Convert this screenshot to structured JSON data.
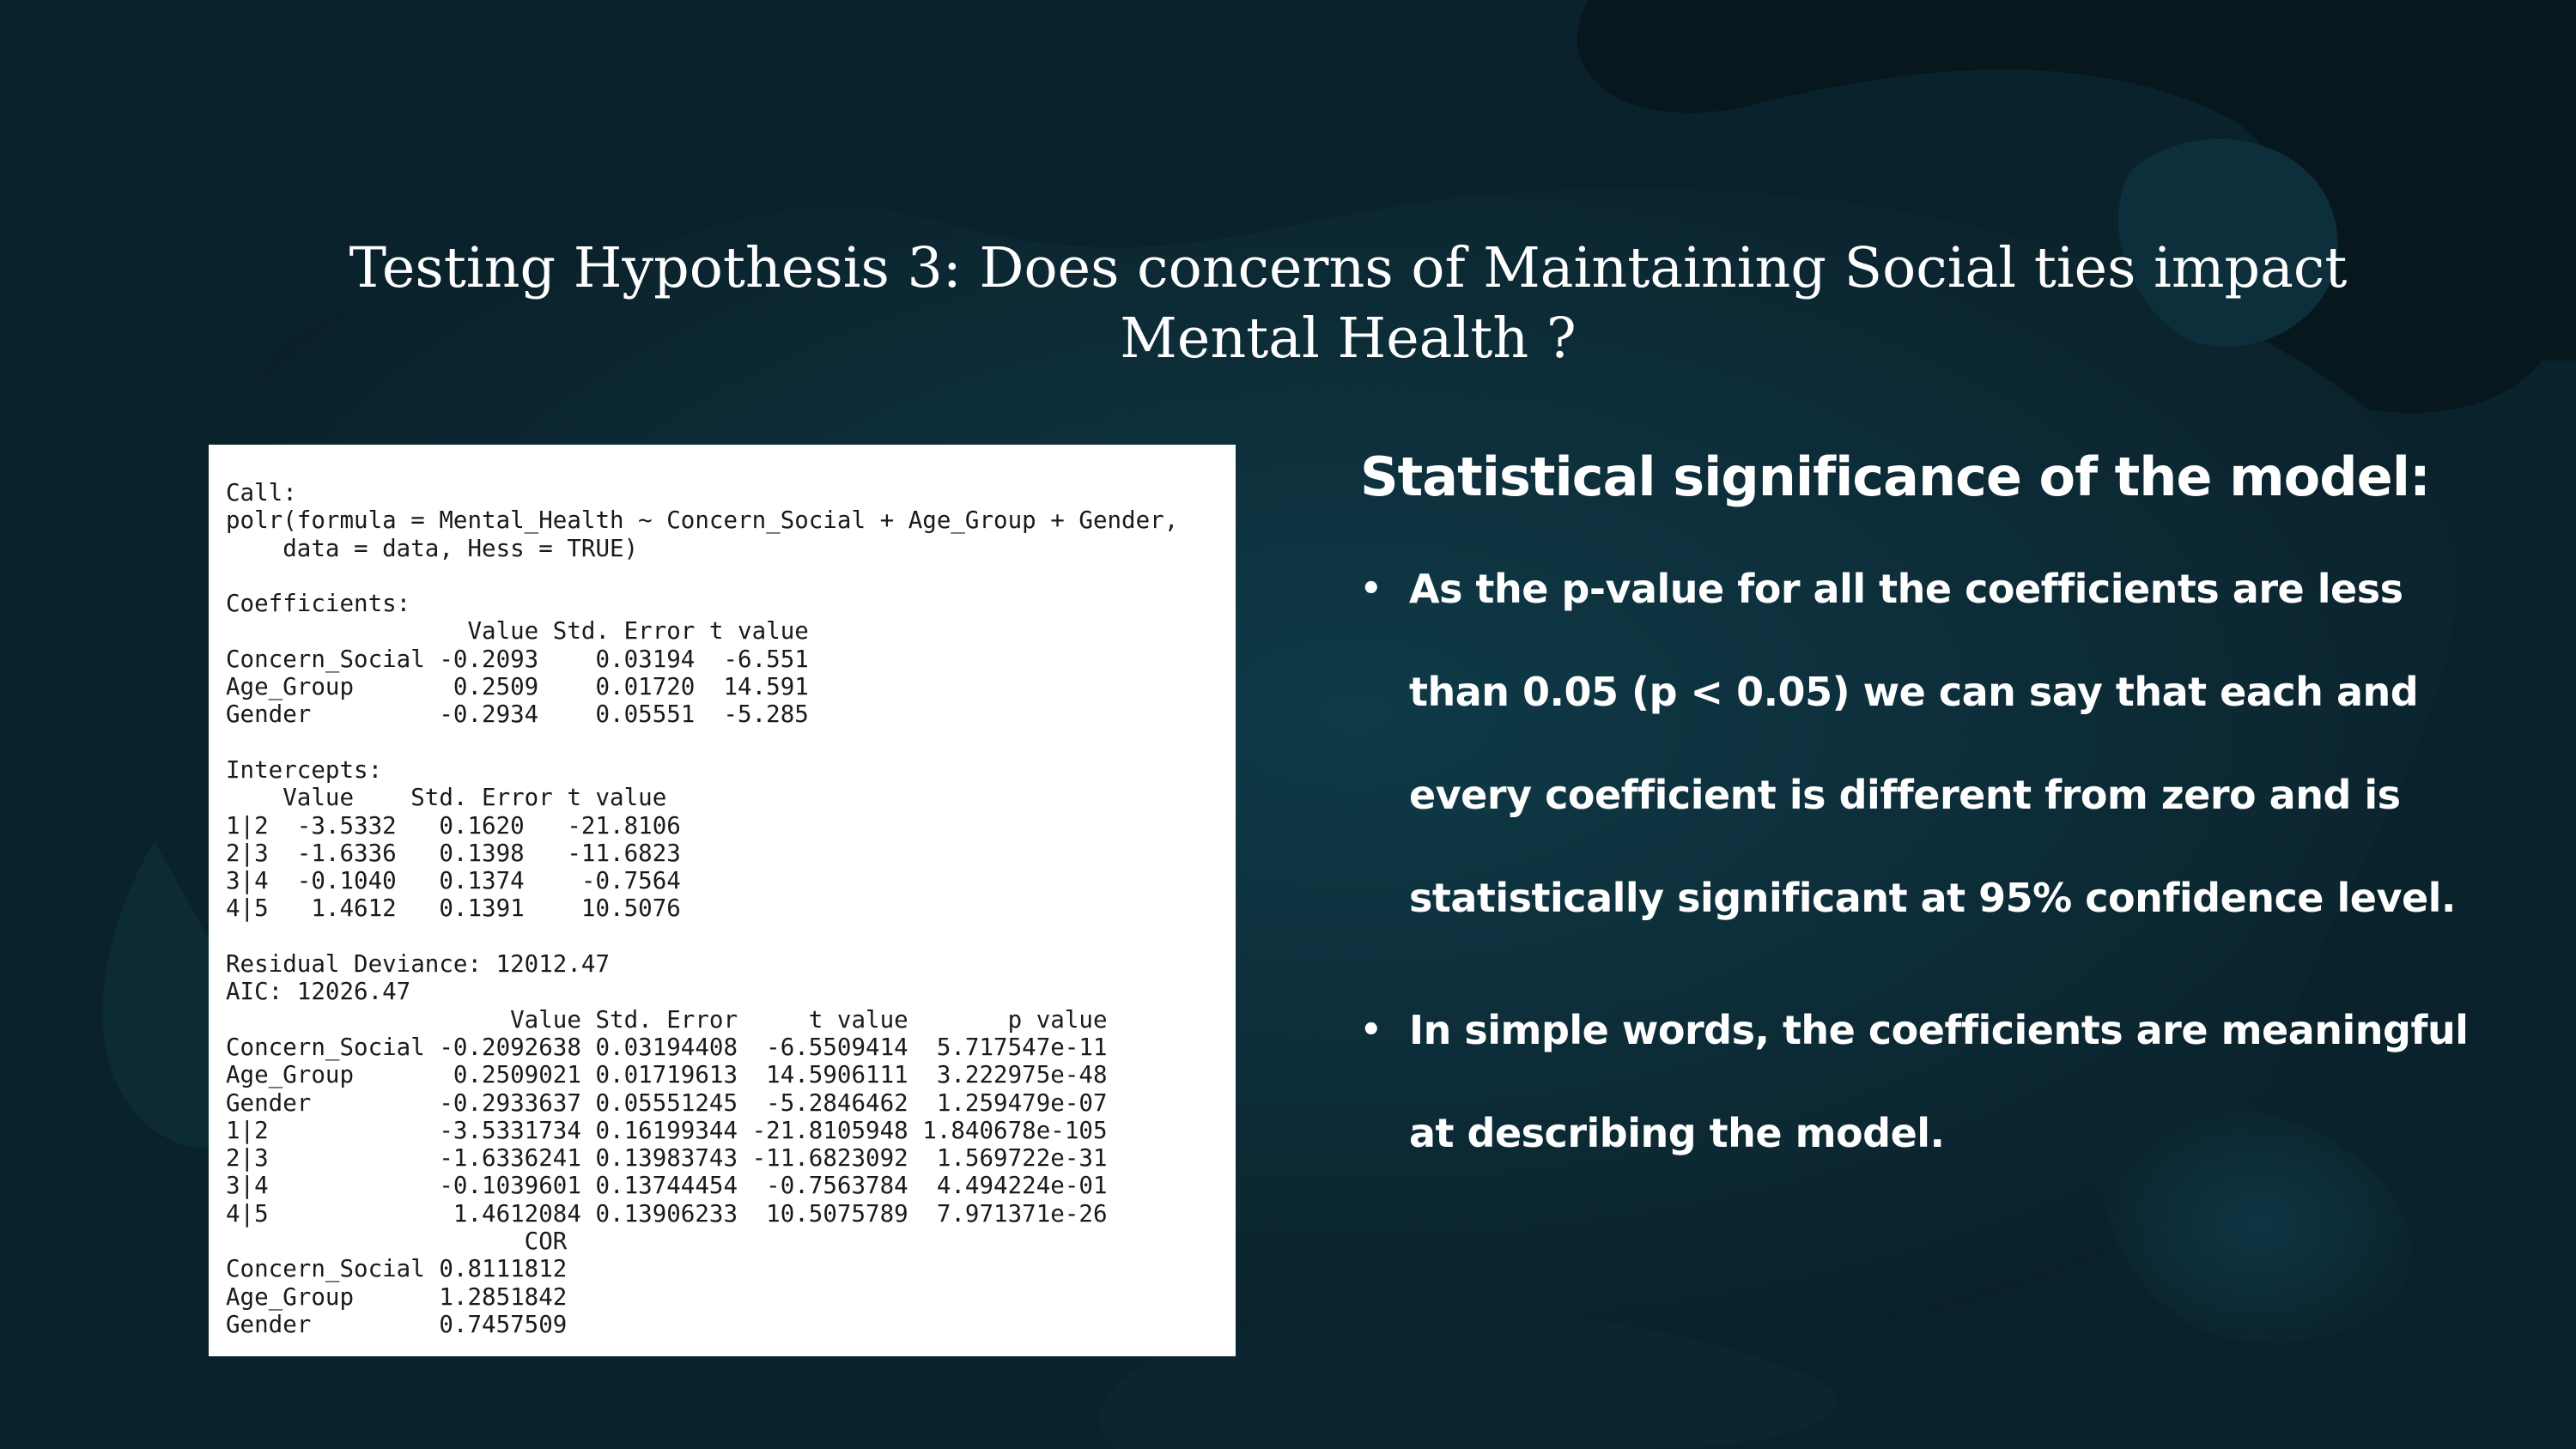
{
  "title": {
    "line1": "Testing Hypothesis 3: Does concerns of Maintaining Social ties impact",
    "line2": "Mental Health ?"
  },
  "code_output": [
    "Call:",
    "polr(formula = Mental_Health ~ Concern_Social + Age_Group + Gender,",
    "    data = data, Hess = TRUE)",
    "",
    "Coefficients:",
    "                 Value Std. Error t value",
    "Concern_Social -0.2093    0.03194  -6.551",
    "Age_Group       0.2509    0.01720  14.591",
    "Gender         -0.2934    0.05551  -5.285",
    "",
    "Intercepts:",
    "    Value    Std. Error t value",
    "1|2  -3.5332   0.1620   -21.8106",
    "2|3  -1.6336   0.1398   -11.6823",
    "3|4  -0.1040   0.1374    -0.7564",
    "4|5   1.4612   0.1391    10.5076",
    "",
    "Residual Deviance: 12012.47",
    "AIC: 12026.47",
    "                    Value Std. Error     t value       p value",
    "Concern_Social -0.2092638 0.03194408  -6.5509414  5.717547e-11",
    "Age_Group       0.2509021 0.01719613  14.5906111  3.222975e-48",
    "Gender         -0.2933637 0.05551245  -5.2846462  1.259479e-07",
    "1|2            -3.5331734 0.16199344 -21.8105948 1.840678e-105",
    "2|3            -1.6336241 0.13983743 -11.6823092  1.569722e-31",
    "3|4            -0.1039601 0.13744454  -0.7563784  4.494224e-01",
    "4|5             1.4612084 0.13906233  10.5075789  7.971371e-26",
    "                     COR",
    "Concern_Social 0.8111812",
    "Age_Group      1.2851842",
    "Gender         0.7457509"
  ],
  "right_panel": {
    "heading": "Statistical significance of the model:",
    "bullets": [
      "As the p-value for all the coefficients are less than 0.05 (p < 0.05) we can say that each and every coefficient is different from zero and is statistically significant at 95% confidence level.",
      "In simple words, the coefficients are meaningful at describing the model."
    ],
    "bullet_glyph": "•"
  },
  "colors": {
    "background": "#081a22",
    "accent_blob": "#0f3846",
    "text": "#ffffff"
  }
}
